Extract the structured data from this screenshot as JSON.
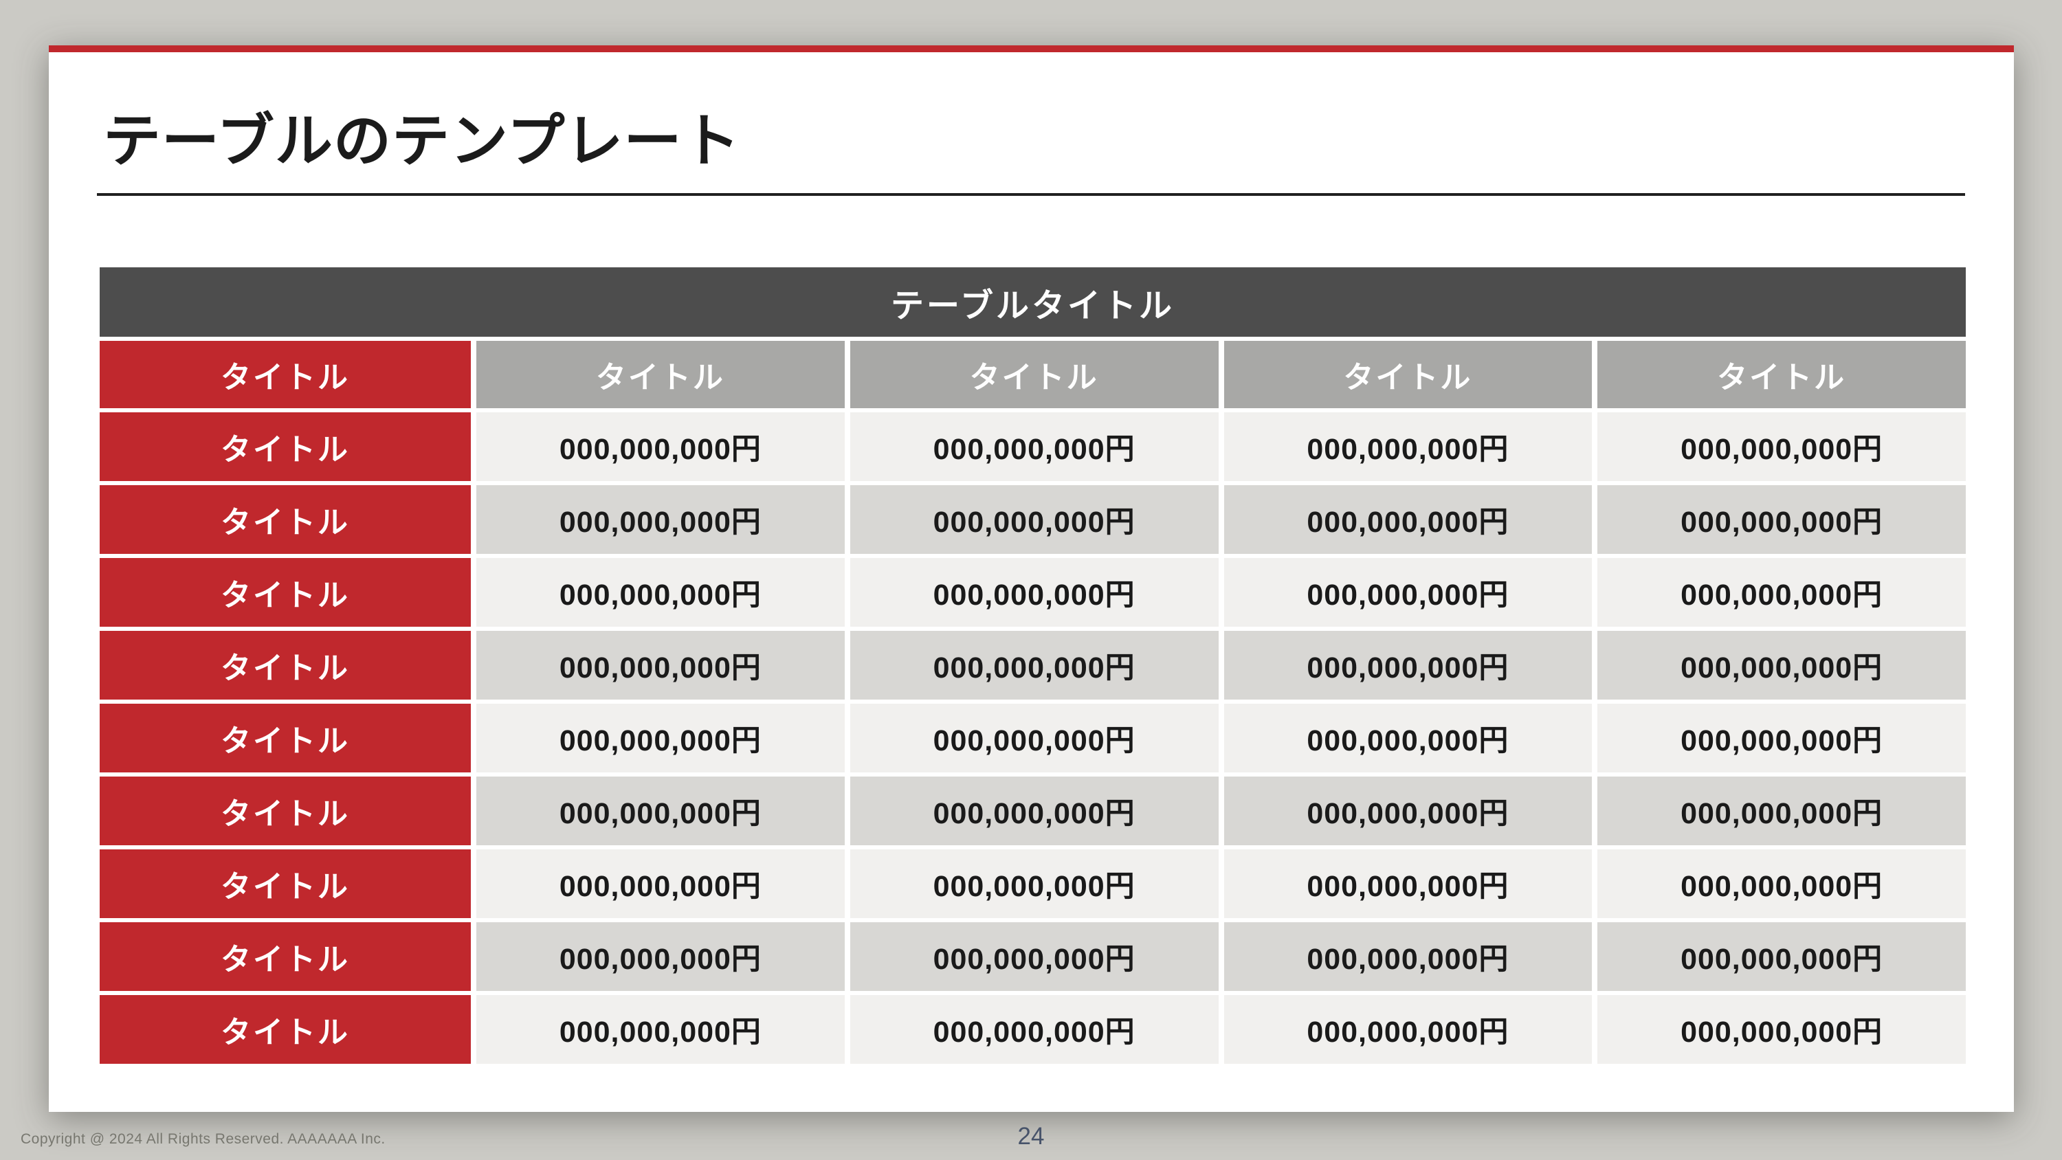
{
  "slide": {
    "page_title": "テーブルのテンプレート",
    "table": {
      "title": "テーブルタイトル",
      "header_row": {
        "row_label": "タイトル",
        "columns": [
          "タイトル",
          "タイトル",
          "タイトル",
          "タイトル"
        ]
      },
      "rows": [
        {
          "label": "タイトル",
          "values": [
            "000,000,000円",
            "000,000,000円",
            "000,000,000円",
            "000,000,000円"
          ]
        },
        {
          "label": "タイトル",
          "values": [
            "000,000,000円",
            "000,000,000円",
            "000,000,000円",
            "000,000,000円"
          ]
        },
        {
          "label": "タイトル",
          "values": [
            "000,000,000円",
            "000,000,000円",
            "000,000,000円",
            "000,000,000円"
          ]
        },
        {
          "label": "タイトル",
          "values": [
            "000,000,000円",
            "000,000,000円",
            "000,000,000円",
            "000,000,000円"
          ]
        },
        {
          "label": "タイトル",
          "values": [
            "000,000,000円",
            "000,000,000円",
            "000,000,000円",
            "000,000,000円"
          ]
        },
        {
          "label": "タイトル",
          "values": [
            "000,000,000円",
            "000,000,000円",
            "000,000,000円",
            "000,000,000円"
          ]
        },
        {
          "label": "タイトル",
          "values": [
            "000,000,000円",
            "000,000,000円",
            "000,000,000円",
            "000,000,000円"
          ]
        },
        {
          "label": "タイトル",
          "values": [
            "000,000,000円",
            "000,000,000円",
            "000,000,000円",
            "000,000,000円"
          ]
        },
        {
          "label": "タイトル",
          "values": [
            "000,000,000円",
            "000,000,000円",
            "000,000,000円",
            "000,000,000円"
          ]
        }
      ]
    }
  },
  "footer": {
    "copyright": "Copyright @ 2024 All Rights Reserved. AAAAAAA Inc.",
    "page_number": "24"
  },
  "colors": {
    "canvas_bg": "#cbcac5",
    "slide_bg": "#ffffff",
    "accent_red": "#c0282d",
    "table_title_bg": "#4d4d4d",
    "column_header_bg": "#a8a8a6",
    "row_light_bg": "#f1f0ee",
    "row_dark_bg": "#d8d7d4",
    "title_text": "#1b1b1b",
    "page_number_text": "#47536a",
    "copyright_text": "#77776f"
  }
}
